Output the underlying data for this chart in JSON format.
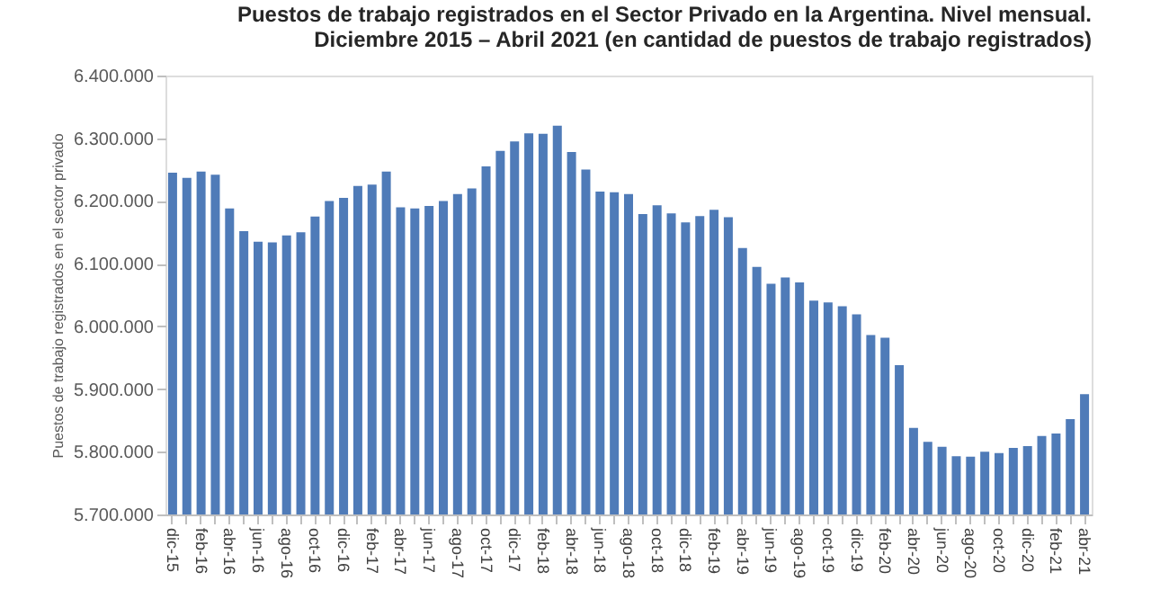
{
  "chart_data": {
    "type": "bar",
    "title": [
      "Puestos de trabajo registrados en el Sector Privado en la Argentina. Nivel mensual.",
      "Diciembre 2015 – Abril 2021 (en cantidad de puestos de trabajo registrados)"
    ],
    "ylabel": "Puestos de trabajo registrados en el sector privado",
    "categories": [
      "dic-15",
      null,
      "feb-16",
      null,
      "abr-16",
      null,
      "jun-16",
      null,
      "ago-16",
      null,
      "oct-16",
      null,
      "dic-16",
      null,
      "feb-17",
      null,
      "abr-17",
      null,
      "jun-17",
      null,
      "ago-17",
      null,
      "oct-17",
      null,
      "dic-17",
      null,
      "feb-18",
      null,
      "abr-18",
      null,
      "jun-18",
      null,
      "ago-18",
      null,
      "oct-18",
      null,
      "dic-18",
      null,
      "feb-19",
      null,
      "abr-19",
      null,
      "jun-19",
      null,
      "ago-19",
      null,
      "oct-19",
      null,
      "dic-19",
      null,
      "feb-20",
      null,
      "abr-20",
      null,
      "jun-20",
      null,
      "ago-20",
      null,
      "oct-20",
      null,
      "dic-20",
      null,
      "feb-21",
      null,
      "abr-21"
    ],
    "values": [
      6245000,
      6237000,
      6247000,
      6242000,
      6188000,
      6152000,
      6135000,
      6134000,
      6145000,
      6150000,
      6175000,
      6200000,
      6205000,
      6224000,
      6226000,
      6247000,
      6190000,
      6188000,
      6192000,
      6200000,
      6211000,
      6220000,
      6255000,
      6280000,
      6295000,
      6308000,
      6307000,
      6320000,
      6278000,
      6250000,
      6215000,
      6214000,
      6211000,
      6179000,
      6193000,
      6180000,
      6166000,
      6176000,
      6186000,
      6174000,
      6125000,
      6095000,
      6068000,
      6078000,
      6070000,
      6041000,
      6038000,
      6032000,
      6019000,
      5986000,
      5982000,
      5938000,
      5838000,
      5816000,
      5808000,
      5793000,
      5792000,
      5800000,
      5798000,
      5806000,
      5809000,
      5825000,
      5829000,
      5852000,
      5892000
    ],
    "color": "#4f7bb8",
    "ylim": [
      5700000,
      6400000
    ],
    "yticks": [
      {
        "value": 5700000,
        "label": "5.700.000"
      },
      {
        "value": 5800000,
        "label": "5.800.000"
      },
      {
        "value": 5900000,
        "label": "5.900.000"
      },
      {
        "value": 6000000,
        "label": "6.000.000"
      },
      {
        "value": 6100000,
        "label": "6.100.000"
      },
      {
        "value": 6200000,
        "label": "6.200.000"
      },
      {
        "value": 6300000,
        "label": "6.300.000"
      },
      {
        "value": 6400000,
        "label": "6.400.000"
      }
    ],
    "grid": false
  }
}
